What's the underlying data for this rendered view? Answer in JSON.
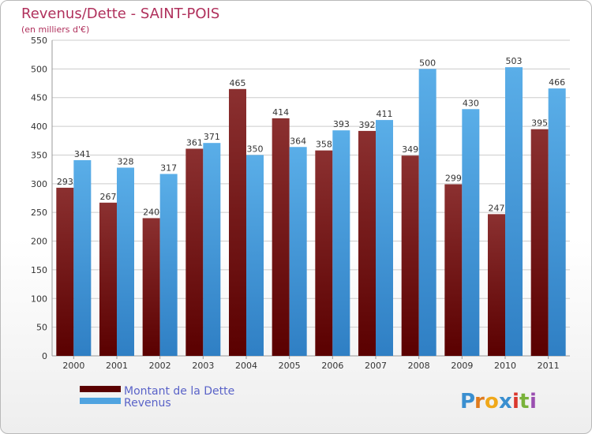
{
  "chart_data": {
    "type": "bar",
    "title": "Revenus/Dette - SAINT-POIS",
    "subtitle": "(en milliers d'€)",
    "categories": [
      "2000",
      "2001",
      "2002",
      "2003",
      "2004",
      "2005",
      "2006",
      "2007",
      "2008",
      "2009",
      "2010",
      "2011"
    ],
    "series": [
      {
        "name": "Montant de la Dette",
        "values": [
          293,
          267,
          240,
          361,
          465,
          414,
          358,
          392,
          349,
          299,
          247,
          395
        ],
        "color": "#7a1f1f"
      },
      {
        "name": "Revenus",
        "values": [
          341,
          328,
          317,
          371,
          350,
          364,
          393,
          411,
          500,
          430,
          503,
          466
        ],
        "color": "#4fa3e0"
      }
    ],
    "ylim": [
      0,
      550
    ],
    "yticks": [
      0,
      50,
      100,
      150,
      200,
      250,
      300,
      350,
      400,
      450,
      500,
      550
    ],
    "grid": true,
    "legend_position": "bottom-left"
  },
  "logo": {
    "text": "Proxiti"
  }
}
